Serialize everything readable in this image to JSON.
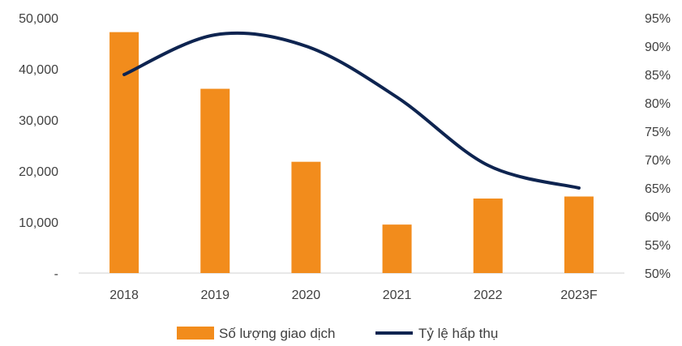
{
  "chart_data": {
    "type": "bar",
    "title": "",
    "categories": [
      "2018",
      "2019",
      "2020",
      "2021",
      "2022",
      "2023F"
    ],
    "series": [
      {
        "name": "Số lượng giao dịch",
        "type": "bar",
        "axis": "left",
        "color": "#F28C1C",
        "values": [
          47200,
          36100,
          21800,
          9500,
          14600,
          15000
        ]
      },
      {
        "name": "Tỷ lệ hấp thụ",
        "type": "line",
        "axis": "right",
        "color": "#0E2450",
        "values": [
          0.85,
          0.92,
          0.9,
          0.81,
          0.69,
          0.65
        ]
      }
    ],
    "y_left": {
      "ylim": [
        0,
        50000
      ],
      "ticks": [
        0,
        10000,
        20000,
        30000,
        40000,
        50000
      ],
      "tick_labels": [
        "-",
        "10,000",
        "20,000",
        "30,000",
        "40,000",
        "50,000"
      ]
    },
    "y_right": {
      "ylim": [
        0.5,
        0.95
      ],
      "ticks": [
        0.5,
        0.55,
        0.6,
        0.65,
        0.7,
        0.75,
        0.8,
        0.85,
        0.9,
        0.95
      ],
      "tick_labels": [
        "50%",
        "55%",
        "60%",
        "65%",
        "70%",
        "75%",
        "80%",
        "85%",
        "90%",
        "95%"
      ]
    },
    "grid": false,
    "legend": {
      "placement": "bottom",
      "items": [
        {
          "label": "Số lượng giao dịch",
          "symbol": "bar",
          "color": "#F28C1C"
        },
        {
          "label": "Tỷ lệ hấp thụ",
          "symbol": "line",
          "color": "#0E2450"
        }
      ]
    }
  }
}
